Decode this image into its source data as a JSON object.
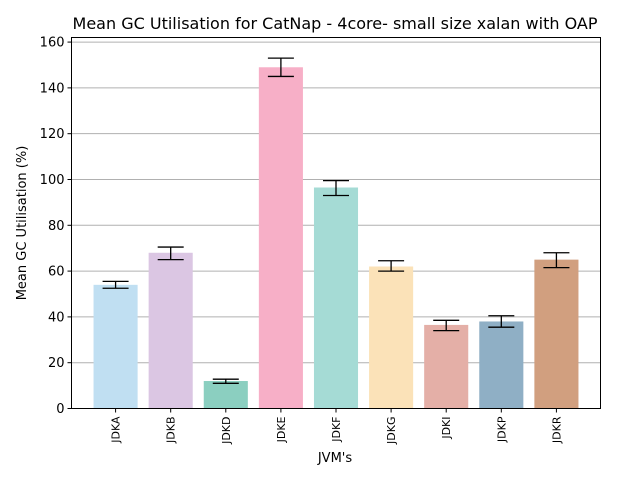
{
  "chart_data": {
    "type": "bar",
    "title": "Mean GC Utilisation for CatNap - 4core- small size xalan with OAP",
    "xlabel": "JVM's",
    "ylabel": "Mean GC Utilisation (%)",
    "ylim": [
      0,
      162
    ],
    "yticks": [
      0,
      20,
      40,
      60,
      80,
      100,
      120,
      140,
      160
    ],
    "grid": "horizontal",
    "categories": [
      "JDKA",
      "JDKB",
      "JDKD",
      "JDKE",
      "JDKF",
      "JDKG",
      "JDKI",
      "JDKP",
      "JDKR"
    ],
    "values": [
      54,
      68,
      12,
      149,
      96.5,
      62,
      36.5,
      38,
      65
    ],
    "error_low": [
      52.5,
      65,
      11,
      145,
      93,
      60,
      34,
      35.5,
      61.5
    ],
    "error_high": [
      55.5,
      70.5,
      12.8,
      153,
      99.5,
      64.5,
      38.5,
      40.5,
      68
    ],
    "colors": [
      "#c0dff2",
      "#dbc6e3",
      "#8bcfc0",
      "#f7afc7",
      "#a5dbd5",
      "#fbe2b8",
      "#e4afa7",
      "#8fafc5",
      "#d19f7f"
    ]
  }
}
